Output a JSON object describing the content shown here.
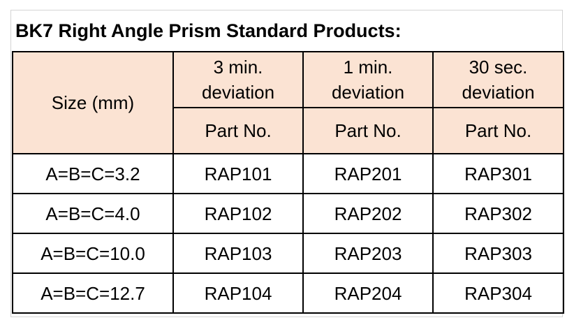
{
  "title": "BK7 Right Angle Prism Standard Products:",
  "table": {
    "size_header": "Size (mm)",
    "deviations": [
      {
        "line1": "3 min.",
        "line2": "deviation"
      },
      {
        "line1": "1 min.",
        "line2": "deviation"
      },
      {
        "line1": "30 sec.",
        "line2": "deviation"
      }
    ],
    "part_no_label": "Part No.",
    "rows": [
      {
        "size": "A=B=C=3.2",
        "parts": [
          "RAP101",
          "RAP201",
          "RAP301"
        ]
      },
      {
        "size": "A=B=C=4.0",
        "parts": [
          "RAP102",
          "RAP202",
          "RAP302"
        ]
      },
      {
        "size": "A=B=C=10.0",
        "parts": [
          "RAP103",
          "RAP203",
          "RAP303"
        ]
      },
      {
        "size": "A=B=C=12.7",
        "parts": [
          "RAP104",
          "RAP204",
          "RAP304"
        ]
      }
    ]
  },
  "colors": {
    "header_background": "#fbe3d3",
    "border": "#000000"
  }
}
